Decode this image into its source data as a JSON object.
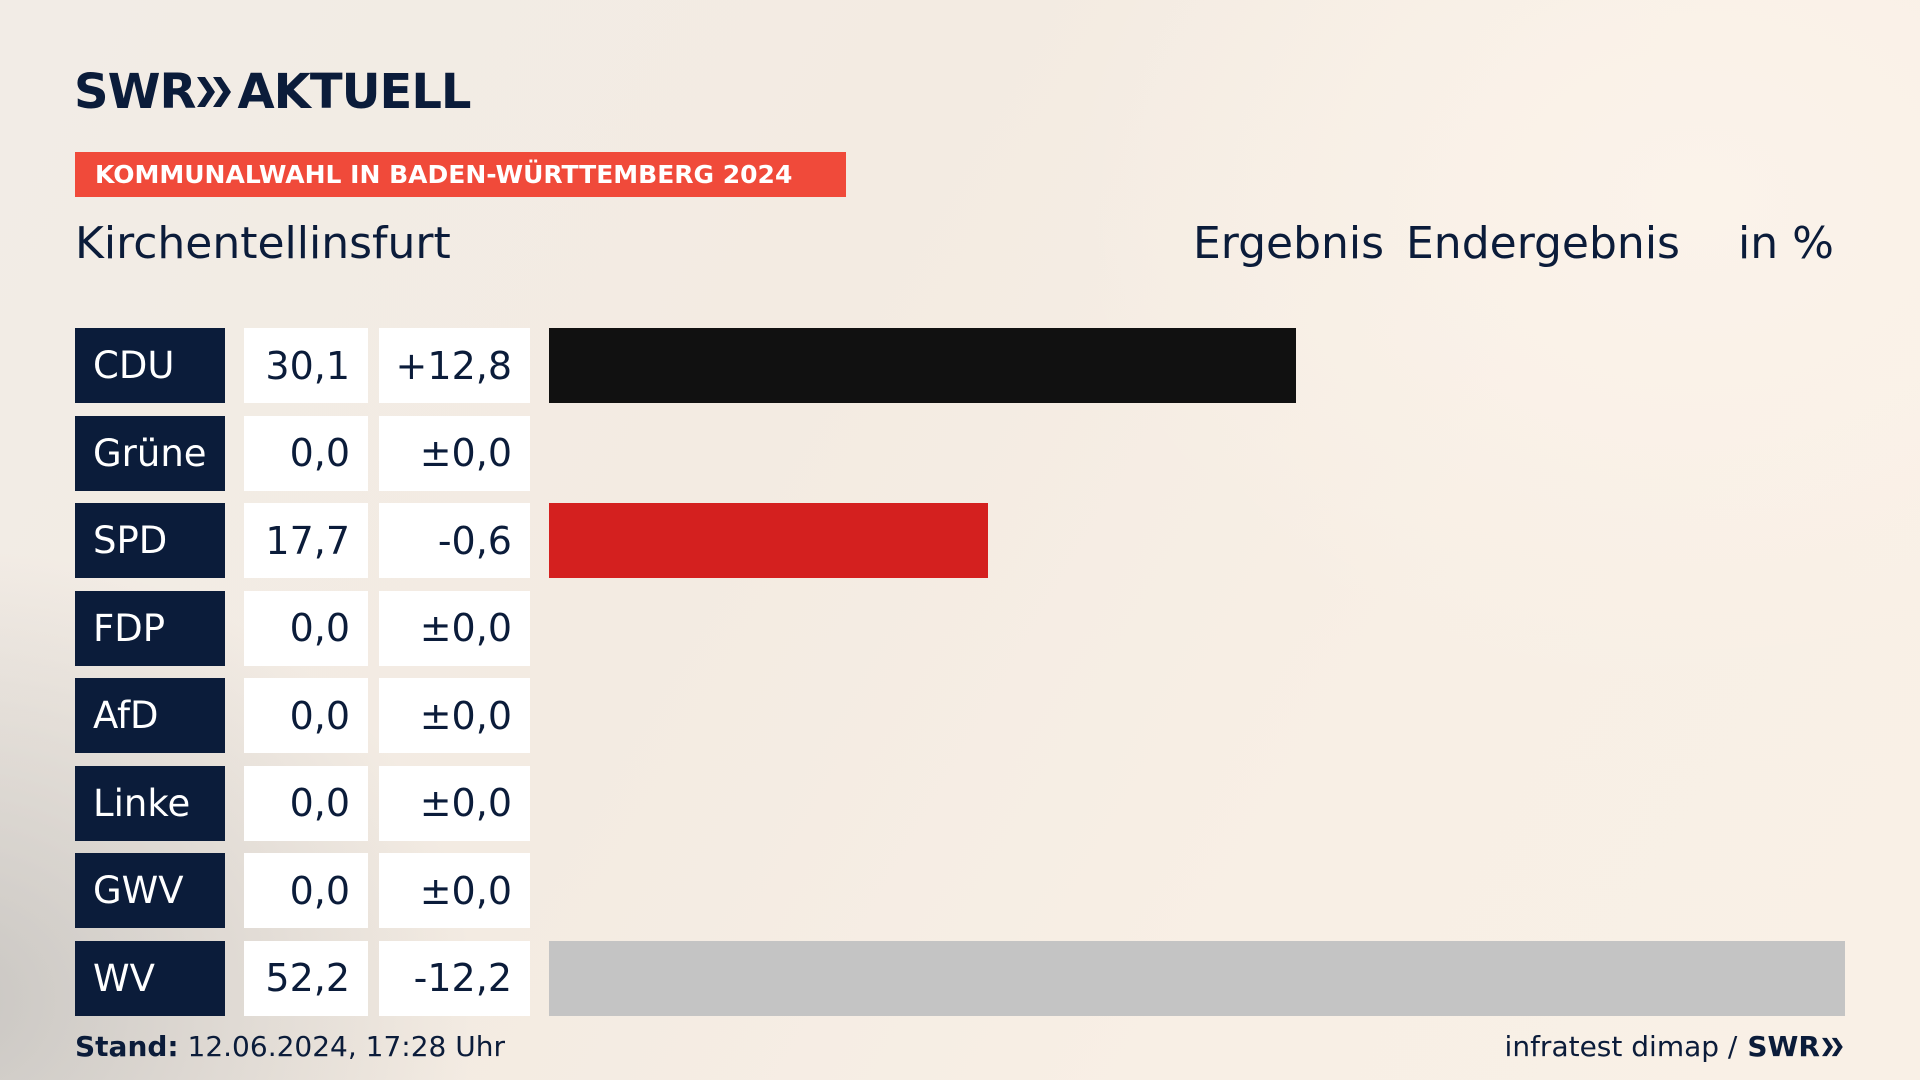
{
  "header": {
    "logo_left": "SWR",
    "logo_right": "AKTUELL",
    "tag": "KOMMUNALWAHL IN BADEN-WÜRTTEMBERG 2024",
    "place": "Kirchentellinsfurt",
    "col_result": "Ergebnis",
    "col_final": "Endergebnis",
    "col_unit": "in %"
  },
  "colors": {
    "navy": "#0b1c3a",
    "tag": "#f04a3a",
    "cdu": "#111111",
    "spd": "#d4201f",
    "wv": "#c4c4c4"
  },
  "chart_data": {
    "type": "bar",
    "orientation": "horizontal",
    "categories": [
      "CDU",
      "Grüne",
      "SPD",
      "FDP",
      "AfD",
      "Linke",
      "GWV",
      "WV"
    ],
    "values": [
      30.1,
      0.0,
      17.7,
      0.0,
      0.0,
      0.0,
      0.0,
      52.2
    ],
    "value_labels": [
      "30,1",
      "0,0",
      "17,7",
      "0,0",
      "0,0",
      "0,0",
      "0,0",
      "52,2"
    ],
    "diff_labels": [
      "+12,8",
      "±0,0",
      "-0,6",
      "±0,0",
      "±0,0",
      "±0,0",
      "±0,0",
      "-12,2"
    ],
    "bar_colors": [
      "#111111",
      "#111111",
      "#d4201f",
      "#111111",
      "#111111",
      "#111111",
      "#111111",
      "#c4c4c4"
    ],
    "xlim": [
      0,
      52.2
    ],
    "grid": false
  },
  "footer": {
    "stand_label": "Stand:",
    "stand_value": "12.06.2024, 17:28 Uhr",
    "source": "infratest dimap /",
    "source_logo": "SWR"
  }
}
